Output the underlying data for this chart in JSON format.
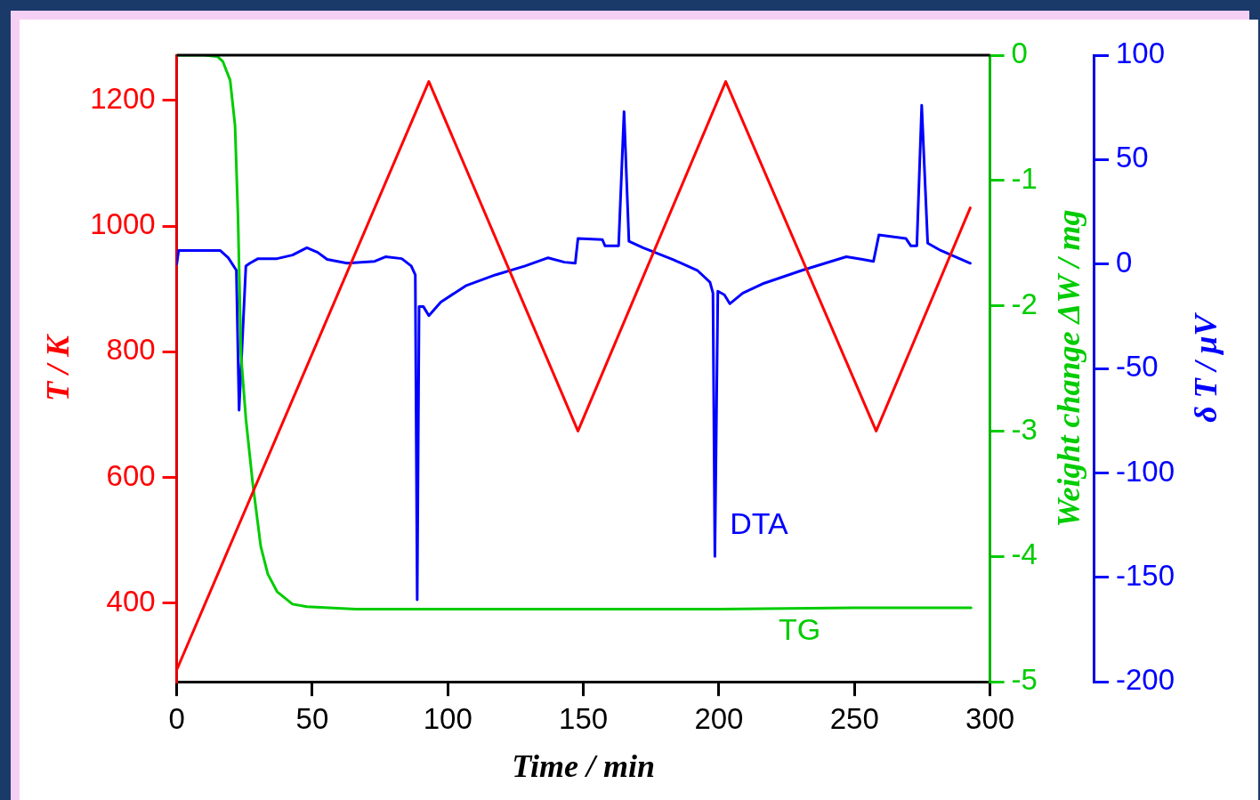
{
  "chart_data": {
    "type": "line",
    "xlabel": "Time / min",
    "ylabel": "T / K",
    "y2label": "Weight change ΔW / mg",
    "y3label": "δ T / μV",
    "xlim": [
      0,
      300
    ],
    "xticks": [
      0,
      50,
      100,
      150,
      200,
      250,
      300
    ],
    "ylim": [
      275,
      1272
    ],
    "yticks": [
      400,
      600,
      800,
      1000,
      1200
    ],
    "y2lim": [
      -5,
      0
    ],
    "y2ticks": [
      -5,
      -4,
      -3,
      -2,
      -1,
      0
    ],
    "y3lim": [
      -200,
      100
    ],
    "y3ticks": [
      -200,
      -150,
      -100,
      -50,
      0,
      50,
      100
    ],
    "grid": false,
    "legend": false,
    "marker": "none",
    "series": [
      {
        "color": "#ff0000",
        "axis": "y",
        "x": [
          0,
          93,
          148,
          202.5,
          258,
          292.7
        ],
        "values": [
          294,
          1230,
          674,
          1230,
          674,
          1029
        ]
      },
      {
        "name": "TG",
        "color": "#00cc00",
        "axis": "y2",
        "x": [
          0,
          10,
          15,
          17,
          19.7,
          21.5,
          22.6,
          23.7,
          25.5,
          28,
          31,
          33.6,
          37,
          42.7,
          48,
          66,
          100,
          150,
          200,
          250,
          293
        ],
        "values": [
          0,
          0,
          -0.01,
          -0.05,
          -0.2,
          -0.56,
          -1.29,
          -2.39,
          -2.9,
          -3.41,
          -3.92,
          -4.14,
          -4.28,
          -4.38,
          -4.4,
          -4.42,
          -4.42,
          -4.42,
          -4.42,
          -4.41,
          -4.41
        ]
      },
      {
        "name": "DTA",
        "color": "#0000ff",
        "axis": "y3",
        "x": [
          0,
          0.7,
          16,
          19,
          22,
          23,
          25.5,
          27,
          30,
          37,
          42.7,
          48,
          52,
          55.5,
          62.8,
          73,
          77,
          83,
          86.5,
          88,
          88.7,
          89.4,
          91,
          93,
          97.4,
          106.6,
          117.5,
          128.5,
          137,
          143,
          147,
          148,
          157,
          158,
          163,
          165,
          166.8,
          172,
          183,
          192,
          196.7,
          197.8,
          198.5,
          199.6,
          202,
          204,
          208.8,
          216,
          230.7,
          247,
          253,
          257,
          259,
          269,
          270.8,
          273,
          274.8,
          277,
          281.8,
          292.7
        ],
        "values": [
          0,
          6.5,
          6.5,
          3,
          -3,
          -70,
          -1,
          0.4,
          2.6,
          2.6,
          4.3,
          7.8,
          5.6,
          2.2,
          0.4,
          1.3,
          3.5,
          2.6,
          -0.9,
          -5.2,
          -160.7,
          -20.4,
          -20.4,
          -24.7,
          -18.2,
          -10.4,
          -5.2,
          -0.9,
          3,
          0.9,
          0.4,
          12.2,
          11.7,
          8.7,
          8.7,
          73,
          10.9,
          7.8,
          2.2,
          -3,
          -8.7,
          -13.9,
          -140,
          -13,
          -14.7,
          -19,
          -13.9,
          -9.5,
          -3,
          3.5,
          2.2,
          1.3,
          13.9,
          12.2,
          8.7,
          8.7,
          76,
          10,
          6.5,
          0.4
        ]
      }
    ]
  }
}
